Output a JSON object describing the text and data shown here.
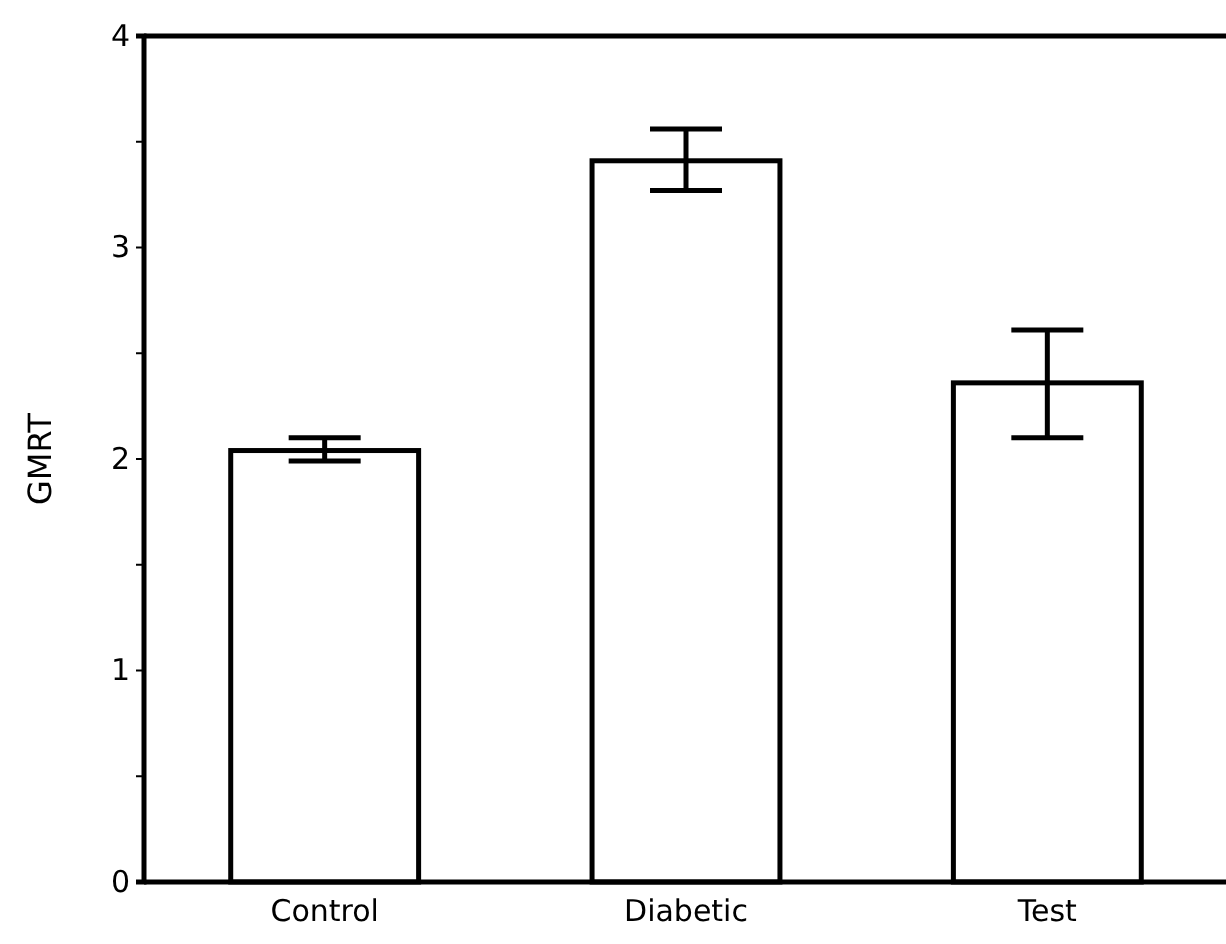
{
  "chart_data": {
    "type": "bar",
    "ylabel": "GMRT",
    "categories": [
      "Control",
      "Diabetic",
      "Test"
    ],
    "values": [
      2.04,
      3.41,
      2.36
    ],
    "errors": [
      [
        1.99,
        2.1
      ],
      [
        3.27,
        3.56
      ],
      [
        2.1,
        2.61
      ]
    ],
    "color": "#ffffff",
    "ylim": [
      0,
      4
    ],
    "yticks": [
      0,
      {
        "value": 0.5,
        "label": null
      },
      1,
      {
        "value": 1.5,
        "label": null
      },
      2,
      {
        "value": 2.5,
        "label": null
      },
      3,
      {
        "value": 3.5,
        "label": null
      },
      4
    ],
    "grid": false
  }
}
